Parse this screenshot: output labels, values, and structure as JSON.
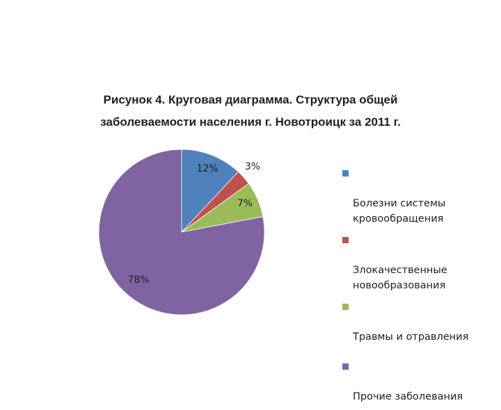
{
  "chart_data": {
    "type": "pie",
    "title_lines": [
      "Рисунок 4. Круговая диаграмма. Структура общей",
      "заболеваемости населения г. Новотроицк за 2011 г."
    ],
    "slices": [
      {
        "name": "Болезни системы кровообращения",
        "legend_text": "Болезни системы\nкровообращения",
        "value": 12,
        "label": "12%",
        "color": "#4f81bd"
      },
      {
        "name": "Злокачественные новообразования",
        "legend_text": "Злокачественные\nновообразования",
        "value": 3,
        "label": "3%",
        "color": "#c0504d"
      },
      {
        "name": "Травмы и отравления",
        "legend_text": "Травмы и отравления",
        "value": 7,
        "label": "7%",
        "color": "#9bbb59"
      },
      {
        "name": "Прочие заболевания",
        "legend_text": "Прочие заболевания",
        "value": 78,
        "label": "78%",
        "color": "#8064a2"
      }
    ],
    "legend_position": "right"
  }
}
